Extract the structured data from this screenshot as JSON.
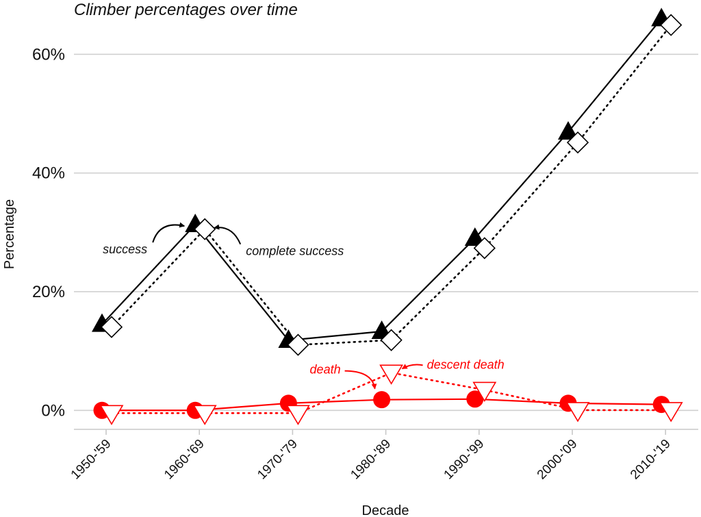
{
  "chart_data": {
    "type": "line",
    "title": "Climber percentages over time",
    "xlabel": "Decade",
    "ylabel": "Percentage",
    "categories": [
      "1950-'59",
      "1960-'69",
      "1970-'79",
      "1980-'89",
      "1990-'99",
      "2000-'09",
      "2010-'19"
    ],
    "ylim": [
      -3.2,
      68
    ],
    "yticks": [
      0,
      20,
      40,
      60
    ],
    "ytick_labels": [
      "0%",
      "20%",
      "40%",
      "60%"
    ],
    "grid": "horizontal",
    "legend": "none",
    "series": [
      {
        "name": "success",
        "color": "#000000",
        "marker": "triangle-up-filled",
        "line": "solid",
        "values": [
          14.5,
          31.3,
          11.8,
          13.3,
          29.0,
          46.9,
          66.0
        ]
      },
      {
        "name": "complete success",
        "color": "#000000",
        "marker": "diamond-open",
        "line": "dotted",
        "values": [
          14.5,
          31.0,
          11.5,
          12.3,
          27.8,
          45.6,
          65.4
        ]
      },
      {
        "name": "death",
        "color": "#ff0000",
        "marker": "circle-filled",
        "line": "solid",
        "values": [
          0.0,
          0.0,
          1.2,
          1.8,
          1.9,
          1.2,
          1.0
        ]
      },
      {
        "name": "descent death",
        "color": "#ff0000",
        "marker": "triangle-down-open",
        "line": "dotted",
        "values": [
          0.0,
          0.0,
          0.0,
          6.8,
          3.9,
          0.5,
          0.5
        ]
      }
    ],
    "annotations": [
      {
        "text": "success",
        "target_series": "success",
        "target_index": 1,
        "side": "left"
      },
      {
        "text": "complete success",
        "target_series": "complete success",
        "target_index": 1,
        "side": "right"
      },
      {
        "text": "death",
        "target_series": "death",
        "target_index": 3,
        "side": "left"
      },
      {
        "text": "descent death",
        "target_series": "descent death",
        "target_index": 3,
        "side": "right"
      }
    ]
  }
}
